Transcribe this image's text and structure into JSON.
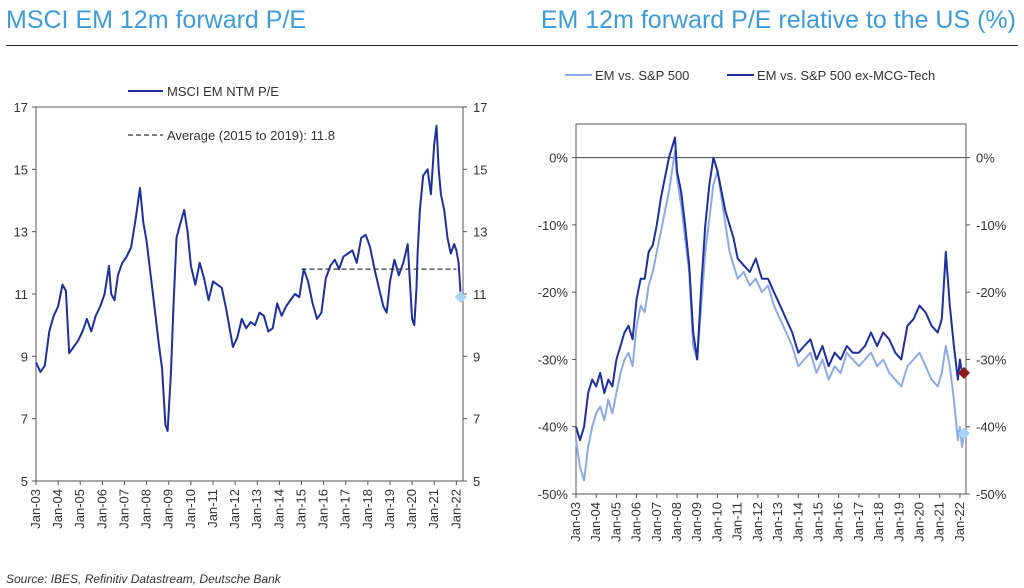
{
  "titles": {
    "left": "MSCI EM 12m forward P/E",
    "right": "EM 12m forward P/E relative to the US (%)"
  },
  "source": "Source: IBES, Refinitiv Datastream, Deutsche Bank",
  "chart_data": [
    {
      "type": "line",
      "title": "MSCI EM 12m forward P/E",
      "xlabel": "",
      "ylabel": "",
      "ylim": [
        5,
        17
      ],
      "yticks": [
        5,
        7,
        9,
        11,
        13,
        15,
        17
      ],
      "xlim": [
        2003.0,
        2022.3
      ],
      "xtick_labels": [
        "Jan-03",
        "Jan-04",
        "Jan-05",
        "Jan-06",
        "Jan-07",
        "Jan-08",
        "Jan-09",
        "Jan-10",
        "Jan-11",
        "Jan-12",
        "Jan-13",
        "Jan-14",
        "Jan-15",
        "Jan-16",
        "Jan-17",
        "Jan-18",
        "Jan-19",
        "Jan-20",
        "Jan-21",
        "Jan-22"
      ],
      "grid": false,
      "legend_position": "top-left",
      "series": [
        {
          "name": "MSCI EM NTM P/E",
          "color": "#1f2f9c",
          "style": "solid",
          "x": [
            2003.0,
            2003.2,
            2003.4,
            2003.6,
            2003.8,
            2004.0,
            2004.2,
            2004.35,
            2004.5,
            2004.7,
            2004.9,
            2005.1,
            2005.3,
            2005.5,
            2005.7,
            2005.9,
            2006.1,
            2006.3,
            2006.4,
            2006.55,
            2006.7,
            2006.9,
            2007.1,
            2007.3,
            2007.5,
            2007.7,
            2007.85,
            2008.0,
            2008.1,
            2008.25,
            2008.4,
            2008.55,
            2008.7,
            2008.85,
            2008.95,
            2009.1,
            2009.2,
            2009.35,
            2009.5,
            2009.7,
            2009.85,
            2010.0,
            2010.2,
            2010.4,
            2010.6,
            2010.8,
            2011.0,
            2011.2,
            2011.4,
            2011.6,
            2011.75,
            2011.9,
            2012.1,
            2012.3,
            2012.5,
            2012.7,
            2012.9,
            2013.1,
            2013.3,
            2013.5,
            2013.7,
            2013.9,
            2014.1,
            2014.3,
            2014.5,
            2014.7,
            2014.9,
            2015.1,
            2015.3,
            2015.5,
            2015.7,
            2015.9,
            2016.1,
            2016.3,
            2016.5,
            2016.7,
            2016.9,
            2017.1,
            2017.3,
            2017.5,
            2017.7,
            2017.9,
            2018.1,
            2018.3,
            2018.5,
            2018.7,
            2018.85,
            2019.0,
            2019.2,
            2019.4,
            2019.6,
            2019.8,
            2020.0,
            2020.1,
            2020.2,
            2020.25,
            2020.35,
            2020.5,
            2020.7,
            2020.85,
            2021.0,
            2021.1,
            2021.2,
            2021.3,
            2021.45,
            2021.6,
            2021.75,
            2021.9,
            2022.0,
            2022.1,
            2022.2
          ],
          "values": [
            8.8,
            8.5,
            8.7,
            9.8,
            10.3,
            10.6,
            11.3,
            11.1,
            9.1,
            9.3,
            9.5,
            9.8,
            10.2,
            9.8,
            10.3,
            10.6,
            11.0,
            11.9,
            11.0,
            10.8,
            11.6,
            12.0,
            12.2,
            12.5,
            13.4,
            14.4,
            13.3,
            12.7,
            12.1,
            11.2,
            10.3,
            9.4,
            8.6,
            6.8,
            6.6,
            8.5,
            10.4,
            12.8,
            13.2,
            13.7,
            13.0,
            11.9,
            11.3,
            12.0,
            11.5,
            10.8,
            11.4,
            11.3,
            11.2,
            10.5,
            9.9,
            9.3,
            9.6,
            10.2,
            9.9,
            10.1,
            10.0,
            10.4,
            10.3,
            9.8,
            9.9,
            10.7,
            10.3,
            10.6,
            10.8,
            11.0,
            10.9,
            11.8,
            11.4,
            10.7,
            10.2,
            10.4,
            11.5,
            11.9,
            12.1,
            11.8,
            12.2,
            12.3,
            12.4,
            12.0,
            12.8,
            12.9,
            12.5,
            11.8,
            11.2,
            10.6,
            10.4,
            11.4,
            12.1,
            11.6,
            12.0,
            12.6,
            10.2,
            10.0,
            11.2,
            12.3,
            13.7,
            14.8,
            15.0,
            14.2,
            15.8,
            16.4,
            15.0,
            14.2,
            13.7,
            12.8,
            12.3,
            12.6,
            12.4,
            12.0,
            10.9
          ]
        },
        {
          "name": "Average (2015 to 2019): 11.8",
          "color": "#333333",
          "style": "dashed",
          "x": [
            2015.0,
            2022.0
          ],
          "values": [
            11.8,
            11.8
          ]
        }
      ],
      "annotations": [
        {
          "type": "diamond",
          "x": 2022.2,
          "value": 10.9,
          "color": "#a8d4f5"
        }
      ]
    },
    {
      "type": "line",
      "title": "EM 12m forward P/E relative to the US (%)",
      "xlabel": "",
      "ylabel": "",
      "ylim": [
        -50,
        5
      ],
      "yticks": [
        -50,
        -40,
        -30,
        -20,
        -10,
        0
      ],
      "ytick_labels": [
        "-50%",
        "-40%",
        "-30%",
        "-20%",
        "-10%",
        "0%"
      ],
      "xlim": [
        2003.0,
        2022.3
      ],
      "xtick_labels": [
        "Jan-03",
        "Jan-04",
        "Jan-05",
        "Jan-06",
        "Jan-07",
        "Jan-08",
        "Jan-09",
        "Jan-10",
        "Jan-11",
        "Jan-12",
        "Jan-13",
        "Jan-14",
        "Jan-15",
        "Jan-16",
        "Jan-17",
        "Jan-18",
        "Jan-19",
        "Jan-20",
        "Jan-21",
        "Jan-22"
      ],
      "grid": false,
      "legend_position": "top",
      "series": [
        {
          "name": "EM vs. S&P 500",
          "color": "#8fa9e3",
          "x": [
            2003.0,
            2003.2,
            2003.4,
            2003.6,
            2003.8,
            2004.0,
            2004.2,
            2004.4,
            2004.6,
            2004.8,
            2005.0,
            2005.2,
            2005.4,
            2005.6,
            2005.8,
            2006.0,
            2006.2,
            2006.4,
            2006.6,
            2006.8,
            2007.0,
            2007.2,
            2007.4,
            2007.6,
            2007.8,
            2007.9,
            2008.0,
            2008.2,
            2008.4,
            2008.6,
            2008.8,
            2009.0,
            2009.2,
            2009.4,
            2009.6,
            2009.8,
            2010.0,
            2010.2,
            2010.4,
            2010.6,
            2010.8,
            2011.0,
            2011.3,
            2011.6,
            2011.9,
            2012.2,
            2012.5,
            2012.8,
            2013.1,
            2013.4,
            2013.7,
            2014.0,
            2014.3,
            2014.6,
            2014.9,
            2015.2,
            2015.5,
            2015.8,
            2016.1,
            2016.4,
            2016.7,
            2017.0,
            2017.3,
            2017.6,
            2017.9,
            2018.2,
            2018.5,
            2018.8,
            2019.1,
            2019.4,
            2019.7,
            2020.0,
            2020.3,
            2020.6,
            2020.9,
            2021.1,
            2021.3,
            2021.5,
            2021.7,
            2021.9,
            2022.0,
            2022.1,
            2022.2
          ],
          "values": [
            -42,
            -46,
            -48,
            -43,
            -40,
            -38,
            -37,
            -39,
            -36,
            -38,
            -35,
            -32,
            -30,
            -29,
            -31,
            -25,
            -22,
            -23,
            -19,
            -17,
            -14,
            -11,
            -8,
            -5,
            -1,
            1,
            -3,
            -7,
            -12,
            -17,
            -28,
            -30,
            -22,
            -14,
            -9,
            -4,
            -2,
            -6,
            -10,
            -14,
            -16,
            -18,
            -17,
            -19,
            -18,
            -20,
            -19,
            -22,
            -24,
            -26,
            -28,
            -31,
            -30,
            -29,
            -32,
            -30,
            -33,
            -31,
            -32,
            -29,
            -30,
            -31,
            -30,
            -29,
            -31,
            -30,
            -32,
            -33,
            -34,
            -31,
            -30,
            -29,
            -31,
            -33,
            -34,
            -32,
            -28,
            -31,
            -36,
            -42,
            -40,
            -43,
            -41
          ]
        },
        {
          "name": "EM vs. S&P 500 ex-MCG-Tech",
          "color": "#1f2f9c",
          "x": [
            2003.0,
            2003.2,
            2003.4,
            2003.6,
            2003.8,
            2004.0,
            2004.2,
            2004.4,
            2004.6,
            2004.8,
            2005.0,
            2005.2,
            2005.4,
            2005.6,
            2005.8,
            2006.0,
            2006.2,
            2006.4,
            2006.6,
            2006.8,
            2007.0,
            2007.2,
            2007.4,
            2007.6,
            2007.8,
            2007.9,
            2008.0,
            2008.2,
            2008.4,
            2008.6,
            2008.8,
            2009.0,
            2009.2,
            2009.4,
            2009.6,
            2009.8,
            2010.0,
            2010.2,
            2010.4,
            2010.6,
            2010.8,
            2011.0,
            2011.3,
            2011.6,
            2011.9,
            2012.2,
            2012.5,
            2012.8,
            2013.1,
            2013.4,
            2013.7,
            2014.0,
            2014.3,
            2014.6,
            2014.9,
            2015.2,
            2015.5,
            2015.8,
            2016.1,
            2016.4,
            2016.7,
            2017.0,
            2017.3,
            2017.6,
            2017.9,
            2018.2,
            2018.5,
            2018.8,
            2019.1,
            2019.4,
            2019.7,
            2020.0,
            2020.3,
            2020.6,
            2020.9,
            2021.1,
            2021.3,
            2021.5,
            2021.7,
            2021.9,
            2022.0,
            2022.1,
            2022.2
          ],
          "values": [
            -40,
            -42,
            -40,
            -35,
            -33,
            -34,
            -32,
            -35,
            -33,
            -34,
            -30,
            -28,
            -26,
            -25,
            -27,
            -21,
            -18,
            -18,
            -14,
            -13,
            -10,
            -6,
            -3,
            0,
            2,
            3,
            -2,
            -5,
            -10,
            -16,
            -26,
            -30,
            -19,
            -10,
            -4,
            0,
            -2,
            -5,
            -8,
            -10,
            -12,
            -15,
            -16,
            -17,
            -15,
            -18,
            -18,
            -20,
            -22,
            -24,
            -26,
            -29,
            -28,
            -27,
            -30,
            -28,
            -31,
            -29,
            -30,
            -28,
            -29,
            -29,
            -28,
            -26,
            -28,
            -26,
            -27,
            -29,
            -30,
            -25,
            -24,
            -22,
            -23,
            -25,
            -26,
            -24,
            -14,
            -22,
            -28,
            -33,
            -30,
            -32,
            -32
          ]
        }
      ],
      "annotations": [
        {
          "type": "diamond",
          "x": 2022.2,
          "value": -32,
          "color": "#8c1c1c"
        },
        {
          "type": "diamond",
          "x": 2022.2,
          "value": -41,
          "color": "#a8d4f5"
        }
      ]
    }
  ]
}
